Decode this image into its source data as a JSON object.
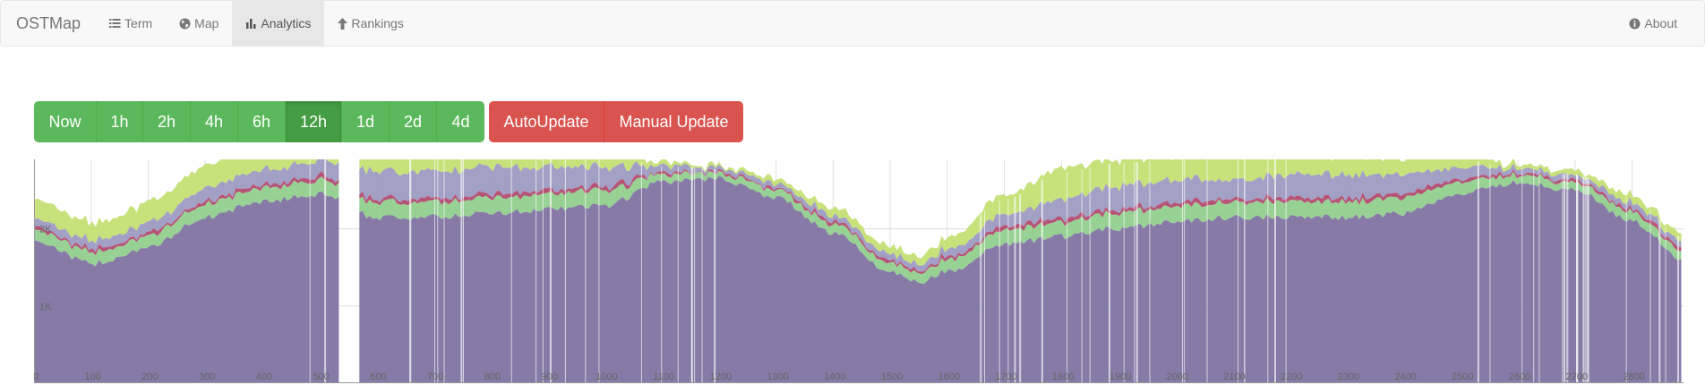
{
  "navbar": {
    "brand": "OSTMap",
    "items": [
      {
        "label": "Term",
        "icon": "list-icon"
      },
      {
        "label": "Map",
        "icon": "globe-icon"
      },
      {
        "label": "Analytics",
        "icon": "bar-chart-icon",
        "active": true
      },
      {
        "label": "Rankings",
        "icon": "arrow-up-icon"
      }
    ],
    "about": {
      "label": "About",
      "icon": "info-circle-icon"
    }
  },
  "time_buttons": [
    {
      "label": "Now"
    },
    {
      "label": "1h"
    },
    {
      "label": "2h"
    },
    {
      "label": "4h"
    },
    {
      "label": "6h"
    },
    {
      "label": "12h",
      "active": true
    },
    {
      "label": "1d"
    },
    {
      "label": "2d"
    },
    {
      "label": "4d"
    }
  ],
  "update_buttons": {
    "auto": "AutoUpdate",
    "manual": "Manual Update"
  },
  "colors": {
    "green_button": "#5cb85c",
    "green_active": "#449d44",
    "red_button": "#d9534f",
    "series_purple": "#7d6fa0",
    "series_green": "#8fcd8b",
    "series_lavender": "#9b98c0",
    "series_red": "#b0456b",
    "series_lime": "#c2e070"
  },
  "chart_data": {
    "type": "area",
    "stacked": true,
    "x_ticks": [
      "0",
      "100",
      "200",
      "300",
      "400",
      "500",
      "600",
      "700",
      "800",
      "900",
      "1000",
      "1100",
      "1200",
      "1300",
      "1400",
      "1500",
      "1600",
      "1700",
      "1800",
      "1900",
      "2000",
      "2100",
      "2200",
      "2300",
      "2400",
      "2500",
      "2600",
      "2700",
      "2800"
    ],
    "y_ticks": [
      "1K",
      "2K"
    ],
    "xlim": [
      0,
      2890
    ],
    "ylim": [
      0,
      2900
    ],
    "grid": true,
    "series": [
      {
        "color": "#7d6fa0"
      },
      {
        "color": "#8fcd8b"
      },
      {
        "color": "#b0456b"
      },
      {
        "color": "#9b98c0"
      },
      {
        "color": "#c2e070"
      }
    ],
    "points": [
      {
        "x": 0,
        "values": [
          1850,
          150,
          40,
          100,
          260
        ]
      },
      {
        "x": 100,
        "values": [
          1550,
          150,
          40,
          110,
          230
        ]
      },
      {
        "x": 200,
        "values": [
          1750,
          150,
          40,
          130,
          260
        ]
      },
      {
        "x": 300,
        "values": [
          2150,
          170,
          40,
          170,
          300
        ]
      },
      {
        "x": 400,
        "values": [
          2350,
          180,
          50,
          190,
          320
        ]
      },
      {
        "x": 500,
        "values": [
          2450,
          180,
          50,
          200,
          320
        ]
      },
      {
        "x": 600,
        "values": [
          2150,
          200,
          50,
          350,
          300
        ]
      },
      {
        "x": 700,
        "values": [
          2150,
          200,
          50,
          350,
          300
        ]
      },
      {
        "x": 800,
        "values": [
          2200,
          200,
          50,
          350,
          250
        ]
      },
      {
        "x": 900,
        "values": [
          2250,
          200,
          50,
          300,
          250
        ]
      },
      {
        "x": 1000,
        "values": [
          2300,
          200,
          50,
          250,
          250
        ]
      },
      {
        "x": 1100,
        "values": [
          2600,
          100,
          30,
          80,
          50
        ]
      },
      {
        "x": 1200,
        "values": [
          2650,
          70,
          20,
          50,
          30
        ]
      },
      {
        "x": 1300,
        "values": [
          2400,
          100,
          30,
          60,
          60
        ]
      },
      {
        "x": 1400,
        "values": [
          1950,
          120,
          40,
          80,
          100
        ]
      },
      {
        "x": 1500,
        "values": [
          1450,
          120,
          40,
          80,
          100
        ]
      },
      {
        "x": 1550,
        "values": [
          1300,
          120,
          40,
          80,
          100
        ]
      },
      {
        "x": 1600,
        "values": [
          1450,
          150,
          40,
          100,
          150
        ]
      },
      {
        "x": 1700,
        "values": [
          1800,
          180,
          50,
          150,
          250
        ]
      },
      {
        "x": 1800,
        "values": [
          1900,
          180,
          50,
          250,
          400
        ]
      },
      {
        "x": 1900,
        "values": [
          2000,
          200,
          50,
          300,
          350
        ]
      },
      {
        "x": 2000,
        "values": [
          2100,
          200,
          50,
          300,
          300
        ]
      },
      {
        "x": 2100,
        "values": [
          2150,
          200,
          50,
          250,
          300
        ]
      },
      {
        "x": 2200,
        "values": [
          2150,
          200,
          50,
          300,
          250
        ]
      },
      {
        "x": 2300,
        "values": [
          2150,
          200,
          50,
          300,
          250
        ]
      },
      {
        "x": 2400,
        "values": [
          2200,
          200,
          50,
          250,
          200
        ]
      },
      {
        "x": 2500,
        "values": [
          2450,
          150,
          40,
          150,
          150
        ]
      },
      {
        "x": 2600,
        "values": [
          2600,
          100,
          30,
          60,
          50
        ]
      },
      {
        "x": 2700,
        "values": [
          2500,
          100,
          30,
          60,
          60
        ]
      },
      {
        "x": 2800,
        "values": [
          2100,
          120,
          40,
          80,
          100
        ]
      },
      {
        "x": 2890,
        "values": [
          1600,
          120,
          40,
          80,
          100
        ]
      }
    ],
    "gaps": [
      [
        540,
        565
      ]
    ]
  }
}
